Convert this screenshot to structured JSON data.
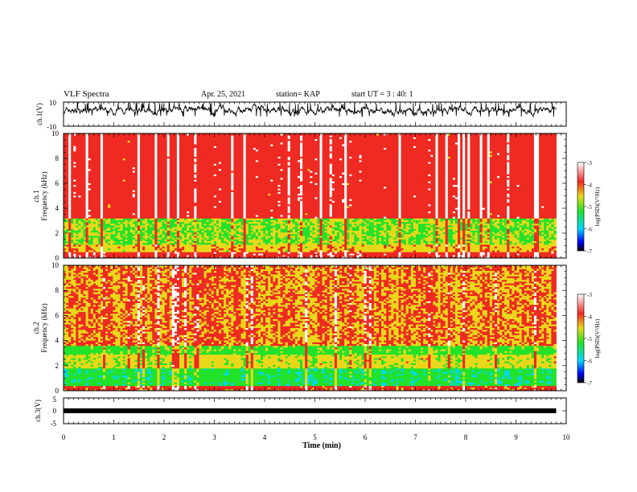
{
  "header": {
    "title": "VLF Spectra",
    "date": "Apr. 25, 2021",
    "station": "station= KAP",
    "start": "start UT = 3 : 40: 1"
  },
  "colors": {
    "spec_low": "#00d8ff",
    "spec_mid": "#22e22a",
    "spec_yellow": "#e8d81a",
    "spec_red": "#ee2a22",
    "spec_high": "#ffffff"
  },
  "chart_data": [
    {
      "id": "ch1-waveform",
      "type": "line",
      "ylabel": "ch.1(V)",
      "ylim": [
        -10,
        10
      ],
      "yticks": [
        10,
        -10
      ],
      "xlim": [
        0,
        10
      ],
      "trace_window_min": [
        0,
        9.8
      ],
      "trace_mean": 3,
      "trace_range": [
        -1,
        8
      ]
    },
    {
      "id": "ch1-spectrogram",
      "type": "heatmap",
      "ylabel_line1": "ch.1",
      "ylabel_line2": "Frequency (kHz)",
      "ylim": [
        0,
        10
      ],
      "yticks": [
        0,
        2,
        4,
        6,
        8,
        10
      ],
      "xlim": [
        0,
        10
      ],
      "data_window_min": [
        0,
        9.8
      ],
      "colorbar": {
        "label": "log(PSD)(V²/Hz)",
        "range": [
          -7,
          -3
        ],
        "ticks": [
          -3,
          -4,
          -5,
          -6,
          -7
        ]
      },
      "bands": [
        {
          "f": [
            0,
            0.5
          ],
          "level": -3.6
        },
        {
          "f": [
            0.5,
            1.1
          ],
          "level": -4.3
        },
        {
          "f": [
            1.1,
            3.2
          ],
          "level": -4.7
        },
        {
          "f": [
            3.2,
            10
          ],
          "level": -3.7
        }
      ]
    },
    {
      "id": "ch2-spectrogram",
      "type": "heatmap",
      "ylabel_line1": "ch.2",
      "ylabel_line2": "Frequency (kHz)",
      "ylim": [
        0,
        10
      ],
      "yticks": [
        0,
        2,
        4,
        6,
        8,
        10
      ],
      "xlim": [
        0,
        10
      ],
      "data_window_min": [
        0,
        9.8
      ],
      "colorbar": {
        "label": "log(PSD)(V²/Hz)",
        "range": [
          -7,
          -3
        ],
        "ticks": [
          -3,
          -4,
          -5,
          -6,
          -7
        ]
      },
      "bands": [
        {
          "f": [
            0,
            0.4
          ],
          "level": -3.9
        },
        {
          "f": [
            0.4,
            1.8
          ],
          "level": -5.3
        },
        {
          "f": [
            1.8,
            2.9
          ],
          "level": -4.5
        },
        {
          "f": [
            2.9,
            3.6
          ],
          "level": -4.9
        },
        {
          "f": [
            3.6,
            10
          ],
          "level": -4.1
        }
      ]
    },
    {
      "id": "ch3-waveform",
      "type": "line",
      "ylabel": "ch.3(V)",
      "ylim": [
        -5,
        5
      ],
      "yticks": [
        5,
        0,
        -5
      ],
      "xlim": [
        0,
        10
      ],
      "trace_window_min": [
        0,
        9.8
      ],
      "trace_value": 0,
      "xlabel": "Time (min)",
      "xticks": [
        0,
        1,
        2,
        3,
        4,
        5,
        6,
        7,
        8,
        9,
        10
      ]
    }
  ]
}
